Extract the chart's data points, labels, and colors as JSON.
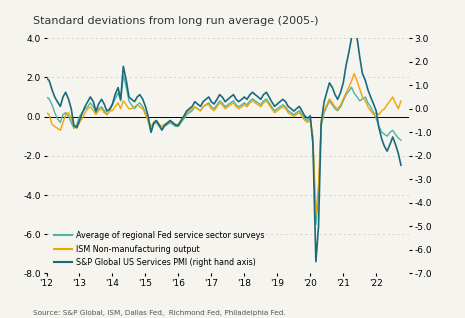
{
  "title": "Standard deviations from long run average (2005-)",
  "source": "Source: S&P Global, ISM, Dallas Fed,  Richmond Fed, Philadelphia Fed.",
  "xlim_start": 2012.0,
  "xlim_end": 2023.0,
  "ylim_left": [
    -8.0,
    4.0
  ],
  "ylim_right": [
    -7.0,
    3.0
  ],
  "yticks_left": [
    -8.0,
    -6.0,
    -4.0,
    -2.0,
    0.0,
    2.0,
    4.0
  ],
  "yticks_right": [
    -7.0,
    -6.0,
    -5.0,
    -4.0,
    -3.0,
    -2.0,
    -1.0,
    0.0,
    1.0,
    2.0,
    3.0
  ],
  "xtick_labels": [
    "'12",
    "'13",
    "'14",
    "'15",
    "'16",
    "'17",
    "'18",
    "'19",
    "'20",
    "'21",
    "'22"
  ],
  "xtick_positions": [
    2012,
    2013,
    2014,
    2015,
    2016,
    2017,
    2018,
    2019,
    2020,
    2021,
    2022
  ],
  "color_fed": "#4db3a4",
  "color_ism": "#f0a500",
  "color_sp": "#1a6b7a",
  "bg_color": "#f5f4ef",
  "legend_labels": [
    "Average of regional Fed service sector surveys",
    "ISM Non-manufacturing output",
    "S&P Global US Services PMI (right hand axis)"
  ],
  "fed_x": [
    2012.0,
    2012.08,
    2012.17,
    2012.25,
    2012.33,
    2012.42,
    2012.5,
    2012.58,
    2012.67,
    2012.75,
    2012.83,
    2012.92,
    2013.0,
    2013.08,
    2013.17,
    2013.25,
    2013.33,
    2013.42,
    2013.5,
    2013.58,
    2013.67,
    2013.75,
    2013.83,
    2013.92,
    2014.0,
    2014.08,
    2014.17,
    2014.25,
    2014.33,
    2014.42,
    2014.5,
    2014.58,
    2014.67,
    2014.75,
    2014.83,
    2014.92,
    2015.0,
    2015.08,
    2015.17,
    2015.25,
    2015.33,
    2015.42,
    2015.5,
    2015.58,
    2015.67,
    2015.75,
    2015.83,
    2015.92,
    2016.0,
    2016.08,
    2016.17,
    2016.25,
    2016.33,
    2016.42,
    2016.5,
    2016.58,
    2016.67,
    2016.75,
    2016.83,
    2016.92,
    2017.0,
    2017.08,
    2017.17,
    2017.25,
    2017.33,
    2017.42,
    2017.5,
    2017.58,
    2017.67,
    2017.75,
    2017.83,
    2017.92,
    2018.0,
    2018.08,
    2018.17,
    2018.25,
    2018.33,
    2018.42,
    2018.5,
    2018.58,
    2018.67,
    2018.75,
    2018.83,
    2018.92,
    2019.0,
    2019.08,
    2019.17,
    2019.25,
    2019.33,
    2019.42,
    2019.5,
    2019.58,
    2019.67,
    2019.75,
    2019.83,
    2019.92,
    2020.0,
    2020.08,
    2020.17,
    2020.25,
    2020.33,
    2020.42,
    2020.5,
    2020.58,
    2020.67,
    2020.75,
    2020.83,
    2020.92,
    2021.0,
    2021.08,
    2021.17,
    2021.25,
    2021.33,
    2021.42,
    2021.5,
    2021.58,
    2021.67,
    2021.75,
    2021.83,
    2021.92,
    2022.0,
    2022.08,
    2022.17,
    2022.25,
    2022.33,
    2022.42,
    2022.5,
    2022.58,
    2022.67,
    2022.75
  ],
  "fed_y": [
    1.0,
    0.9,
    0.6,
    0.2,
    -0.1,
    -0.3,
    0.1,
    0.2,
    0.0,
    -0.3,
    -0.6,
    -0.4,
    0.0,
    0.2,
    0.4,
    0.5,
    0.7,
    0.5,
    0.2,
    0.4,
    0.5,
    0.3,
    0.1,
    0.3,
    0.6,
    0.9,
    1.2,
    0.8,
    2.1,
    1.5,
    0.8,
    0.6,
    0.4,
    0.6,
    0.7,
    0.5,
    0.2,
    -0.2,
    -0.8,
    -0.4,
    -0.3,
    -0.5,
    -0.7,
    -0.5,
    -0.4,
    -0.3,
    -0.4,
    -0.5,
    -0.5,
    -0.3,
    -0.1,
    0.1,
    0.2,
    0.3,
    0.5,
    0.4,
    0.3,
    0.5,
    0.6,
    0.7,
    0.5,
    0.4,
    0.6,
    0.8,
    0.7,
    0.5,
    0.6,
    0.7,
    0.8,
    0.6,
    0.5,
    0.6,
    0.7,
    0.6,
    0.8,
    0.9,
    0.8,
    0.7,
    0.6,
    0.8,
    0.9,
    0.7,
    0.5,
    0.3,
    0.4,
    0.5,
    0.6,
    0.5,
    0.3,
    0.2,
    0.1,
    0.2,
    0.3,
    0.1,
    -0.1,
    -0.2,
    -0.1,
    -1.2,
    -5.5,
    -4.0,
    -0.5,
    0.2,
    0.5,
    0.8,
    0.6,
    0.4,
    0.3,
    0.5,
    0.8,
    1.1,
    1.3,
    1.5,
    1.2,
    1.0,
    0.8,
    0.9,
    1.0,
    0.7,
    0.5,
    0.2,
    -0.1,
    -0.5,
    -0.8,
    -0.9,
    -1.0,
    -0.8,
    -0.7,
    -0.9,
    -1.1,
    -1.2
  ],
  "ism_x": [
    2012.0,
    2012.08,
    2012.17,
    2012.25,
    2012.33,
    2012.42,
    2012.5,
    2012.58,
    2012.67,
    2012.75,
    2012.83,
    2012.92,
    2013.0,
    2013.08,
    2013.17,
    2013.25,
    2013.33,
    2013.42,
    2013.5,
    2013.58,
    2013.67,
    2013.75,
    2013.83,
    2013.92,
    2014.0,
    2014.08,
    2014.17,
    2014.25,
    2014.33,
    2014.42,
    2014.5,
    2014.58,
    2014.67,
    2014.75,
    2014.83,
    2014.92,
    2015.0,
    2015.08,
    2015.17,
    2015.25,
    2015.33,
    2015.42,
    2015.5,
    2015.58,
    2015.67,
    2015.75,
    2015.83,
    2015.92,
    2016.0,
    2016.08,
    2016.17,
    2016.25,
    2016.33,
    2016.42,
    2016.5,
    2016.58,
    2016.67,
    2016.75,
    2016.83,
    2016.92,
    2017.0,
    2017.08,
    2017.17,
    2017.25,
    2017.33,
    2017.42,
    2017.5,
    2017.58,
    2017.67,
    2017.75,
    2017.83,
    2017.92,
    2018.0,
    2018.08,
    2018.17,
    2018.25,
    2018.33,
    2018.42,
    2018.5,
    2018.58,
    2018.67,
    2018.75,
    2018.83,
    2018.92,
    2019.0,
    2019.08,
    2019.17,
    2019.25,
    2019.33,
    2019.42,
    2019.5,
    2019.58,
    2019.67,
    2019.75,
    2019.83,
    2019.92,
    2020.0,
    2020.08,
    2020.17,
    2020.25,
    2020.33,
    2020.42,
    2020.5,
    2020.58,
    2020.67,
    2020.75,
    2020.83,
    2020.92,
    2021.0,
    2021.08,
    2021.17,
    2021.25,
    2021.33,
    2021.42,
    2021.5,
    2021.58,
    2021.67,
    2021.75,
    2021.83,
    2021.92,
    2022.0,
    2022.08,
    2022.17,
    2022.25,
    2022.33,
    2022.42,
    2022.5,
    2022.58,
    2022.67,
    2022.75
  ],
  "ism_y": [
    0.2,
    0.1,
    -0.4,
    -0.5,
    -0.6,
    -0.7,
    -0.3,
    0.1,
    0.2,
    -0.1,
    -0.5,
    -0.6,
    -0.3,
    -0.1,
    0.2,
    0.4,
    0.5,
    0.3,
    0.1,
    0.3,
    0.4,
    0.2,
    0.1,
    0.3,
    0.3,
    0.5,
    0.7,
    0.4,
    0.8,
    0.6,
    0.4,
    0.4,
    0.5,
    0.6,
    0.5,
    0.4,
    0.1,
    -0.2,
    -0.5,
    -0.3,
    -0.2,
    -0.4,
    -0.5,
    -0.4,
    -0.3,
    -0.2,
    -0.3,
    -0.4,
    -0.4,
    -0.2,
    0.0,
    0.2,
    0.3,
    0.4,
    0.5,
    0.4,
    0.3,
    0.5,
    0.6,
    0.6,
    0.4,
    0.3,
    0.5,
    0.7,
    0.6,
    0.4,
    0.5,
    0.6,
    0.7,
    0.5,
    0.4,
    0.5,
    0.6,
    0.5,
    0.7,
    0.8,
    0.7,
    0.6,
    0.5,
    0.7,
    0.8,
    0.6,
    0.4,
    0.2,
    0.3,
    0.4,
    0.5,
    0.4,
    0.2,
    0.1,
    0.0,
    0.1,
    0.2,
    0.0,
    -0.2,
    -0.3,
    -0.2,
    -1.0,
    -5.0,
    -3.5,
    -0.4,
    0.3,
    0.6,
    0.9,
    0.7,
    0.5,
    0.4,
    0.6,
    0.9,
    1.2,
    1.5,
    1.8,
    2.2,
    1.8,
    1.4,
    1.0,
    0.8,
    0.5,
    0.3,
    0.1,
    0.2,
    0.1,
    0.3,
    0.4,
    0.6,
    0.8,
    1.0,
    0.7,
    0.4,
    0.8
  ],
  "sp_x": [
    2012.0,
    2012.08,
    2012.17,
    2012.25,
    2012.33,
    2012.42,
    2012.5,
    2012.58,
    2012.67,
    2012.75,
    2012.83,
    2012.92,
    2013.0,
    2013.08,
    2013.17,
    2013.25,
    2013.33,
    2013.42,
    2013.5,
    2013.58,
    2013.67,
    2013.75,
    2013.83,
    2013.92,
    2014.0,
    2014.08,
    2014.17,
    2014.25,
    2014.33,
    2014.42,
    2014.5,
    2014.58,
    2014.67,
    2014.75,
    2014.83,
    2014.92,
    2015.0,
    2015.08,
    2015.17,
    2015.25,
    2015.33,
    2015.42,
    2015.5,
    2015.58,
    2015.67,
    2015.75,
    2015.83,
    2015.92,
    2016.0,
    2016.08,
    2016.17,
    2016.25,
    2016.33,
    2016.42,
    2016.5,
    2016.58,
    2016.67,
    2016.75,
    2016.83,
    2016.92,
    2017.0,
    2017.08,
    2017.17,
    2017.25,
    2017.33,
    2017.42,
    2017.5,
    2017.58,
    2017.67,
    2017.75,
    2017.83,
    2017.92,
    2018.0,
    2018.08,
    2018.17,
    2018.25,
    2018.33,
    2018.42,
    2018.5,
    2018.58,
    2018.67,
    2018.75,
    2018.83,
    2018.92,
    2019.0,
    2019.08,
    2019.17,
    2019.25,
    2019.33,
    2019.42,
    2019.5,
    2019.58,
    2019.67,
    2019.75,
    2019.83,
    2019.92,
    2020.0,
    2020.08,
    2020.17,
    2020.25,
    2020.33,
    2020.42,
    2020.5,
    2020.58,
    2020.67,
    2020.75,
    2020.83,
    2020.92,
    2021.0,
    2021.08,
    2021.17,
    2021.25,
    2021.33,
    2021.42,
    2021.5,
    2021.58,
    2021.67,
    2021.75,
    2021.83,
    2021.92,
    2022.0,
    2022.08,
    2022.17,
    2022.25,
    2022.33,
    2022.42,
    2022.5,
    2022.58,
    2022.67,
    2022.75
  ],
  "sp_y": [
    1.3,
    1.2,
    0.8,
    0.5,
    0.3,
    0.1,
    0.5,
    0.7,
    0.4,
    0.0,
    -0.7,
    -0.8,
    -0.5,
    -0.2,
    0.1,
    0.3,
    0.5,
    0.3,
    -0.1,
    0.2,
    0.4,
    0.2,
    -0.1,
    0.0,
    0.2,
    0.6,
    0.9,
    0.4,
    1.8,
    1.2,
    0.5,
    0.4,
    0.3,
    0.5,
    0.6,
    0.4,
    0.1,
    -0.3,
    -1.0,
    -0.6,
    -0.5,
    -0.7,
    -0.9,
    -0.7,
    -0.6,
    -0.5,
    -0.6,
    -0.7,
    -0.7,
    -0.5,
    -0.3,
    -0.1,
    0.0,
    0.1,
    0.3,
    0.2,
    0.1,
    0.3,
    0.4,
    0.5,
    0.3,
    0.2,
    0.4,
    0.6,
    0.5,
    0.3,
    0.4,
    0.5,
    0.6,
    0.4,
    0.3,
    0.4,
    0.5,
    0.4,
    0.6,
    0.7,
    0.6,
    0.5,
    0.4,
    0.6,
    0.7,
    0.5,
    0.3,
    0.1,
    0.2,
    0.3,
    0.4,
    0.3,
    0.1,
    0.0,
    -0.1,
    0.0,
    0.1,
    -0.1,
    -0.3,
    -0.4,
    -0.3,
    -1.5,
    -6.5,
    -5.0,
    -0.6,
    0.3,
    0.7,
    1.1,
    0.9,
    0.6,
    0.4,
    0.7,
    1.1,
    1.8,
    2.4,
    3.0,
    3.8,
    3.0,
    2.2,
    1.5,
    1.2,
    0.8,
    0.5,
    0.2,
    -0.1,
    -0.8,
    -1.3,
    -1.6,
    -1.8,
    -1.5,
    -1.2,
    -1.5,
    -1.9,
    -2.4
  ]
}
